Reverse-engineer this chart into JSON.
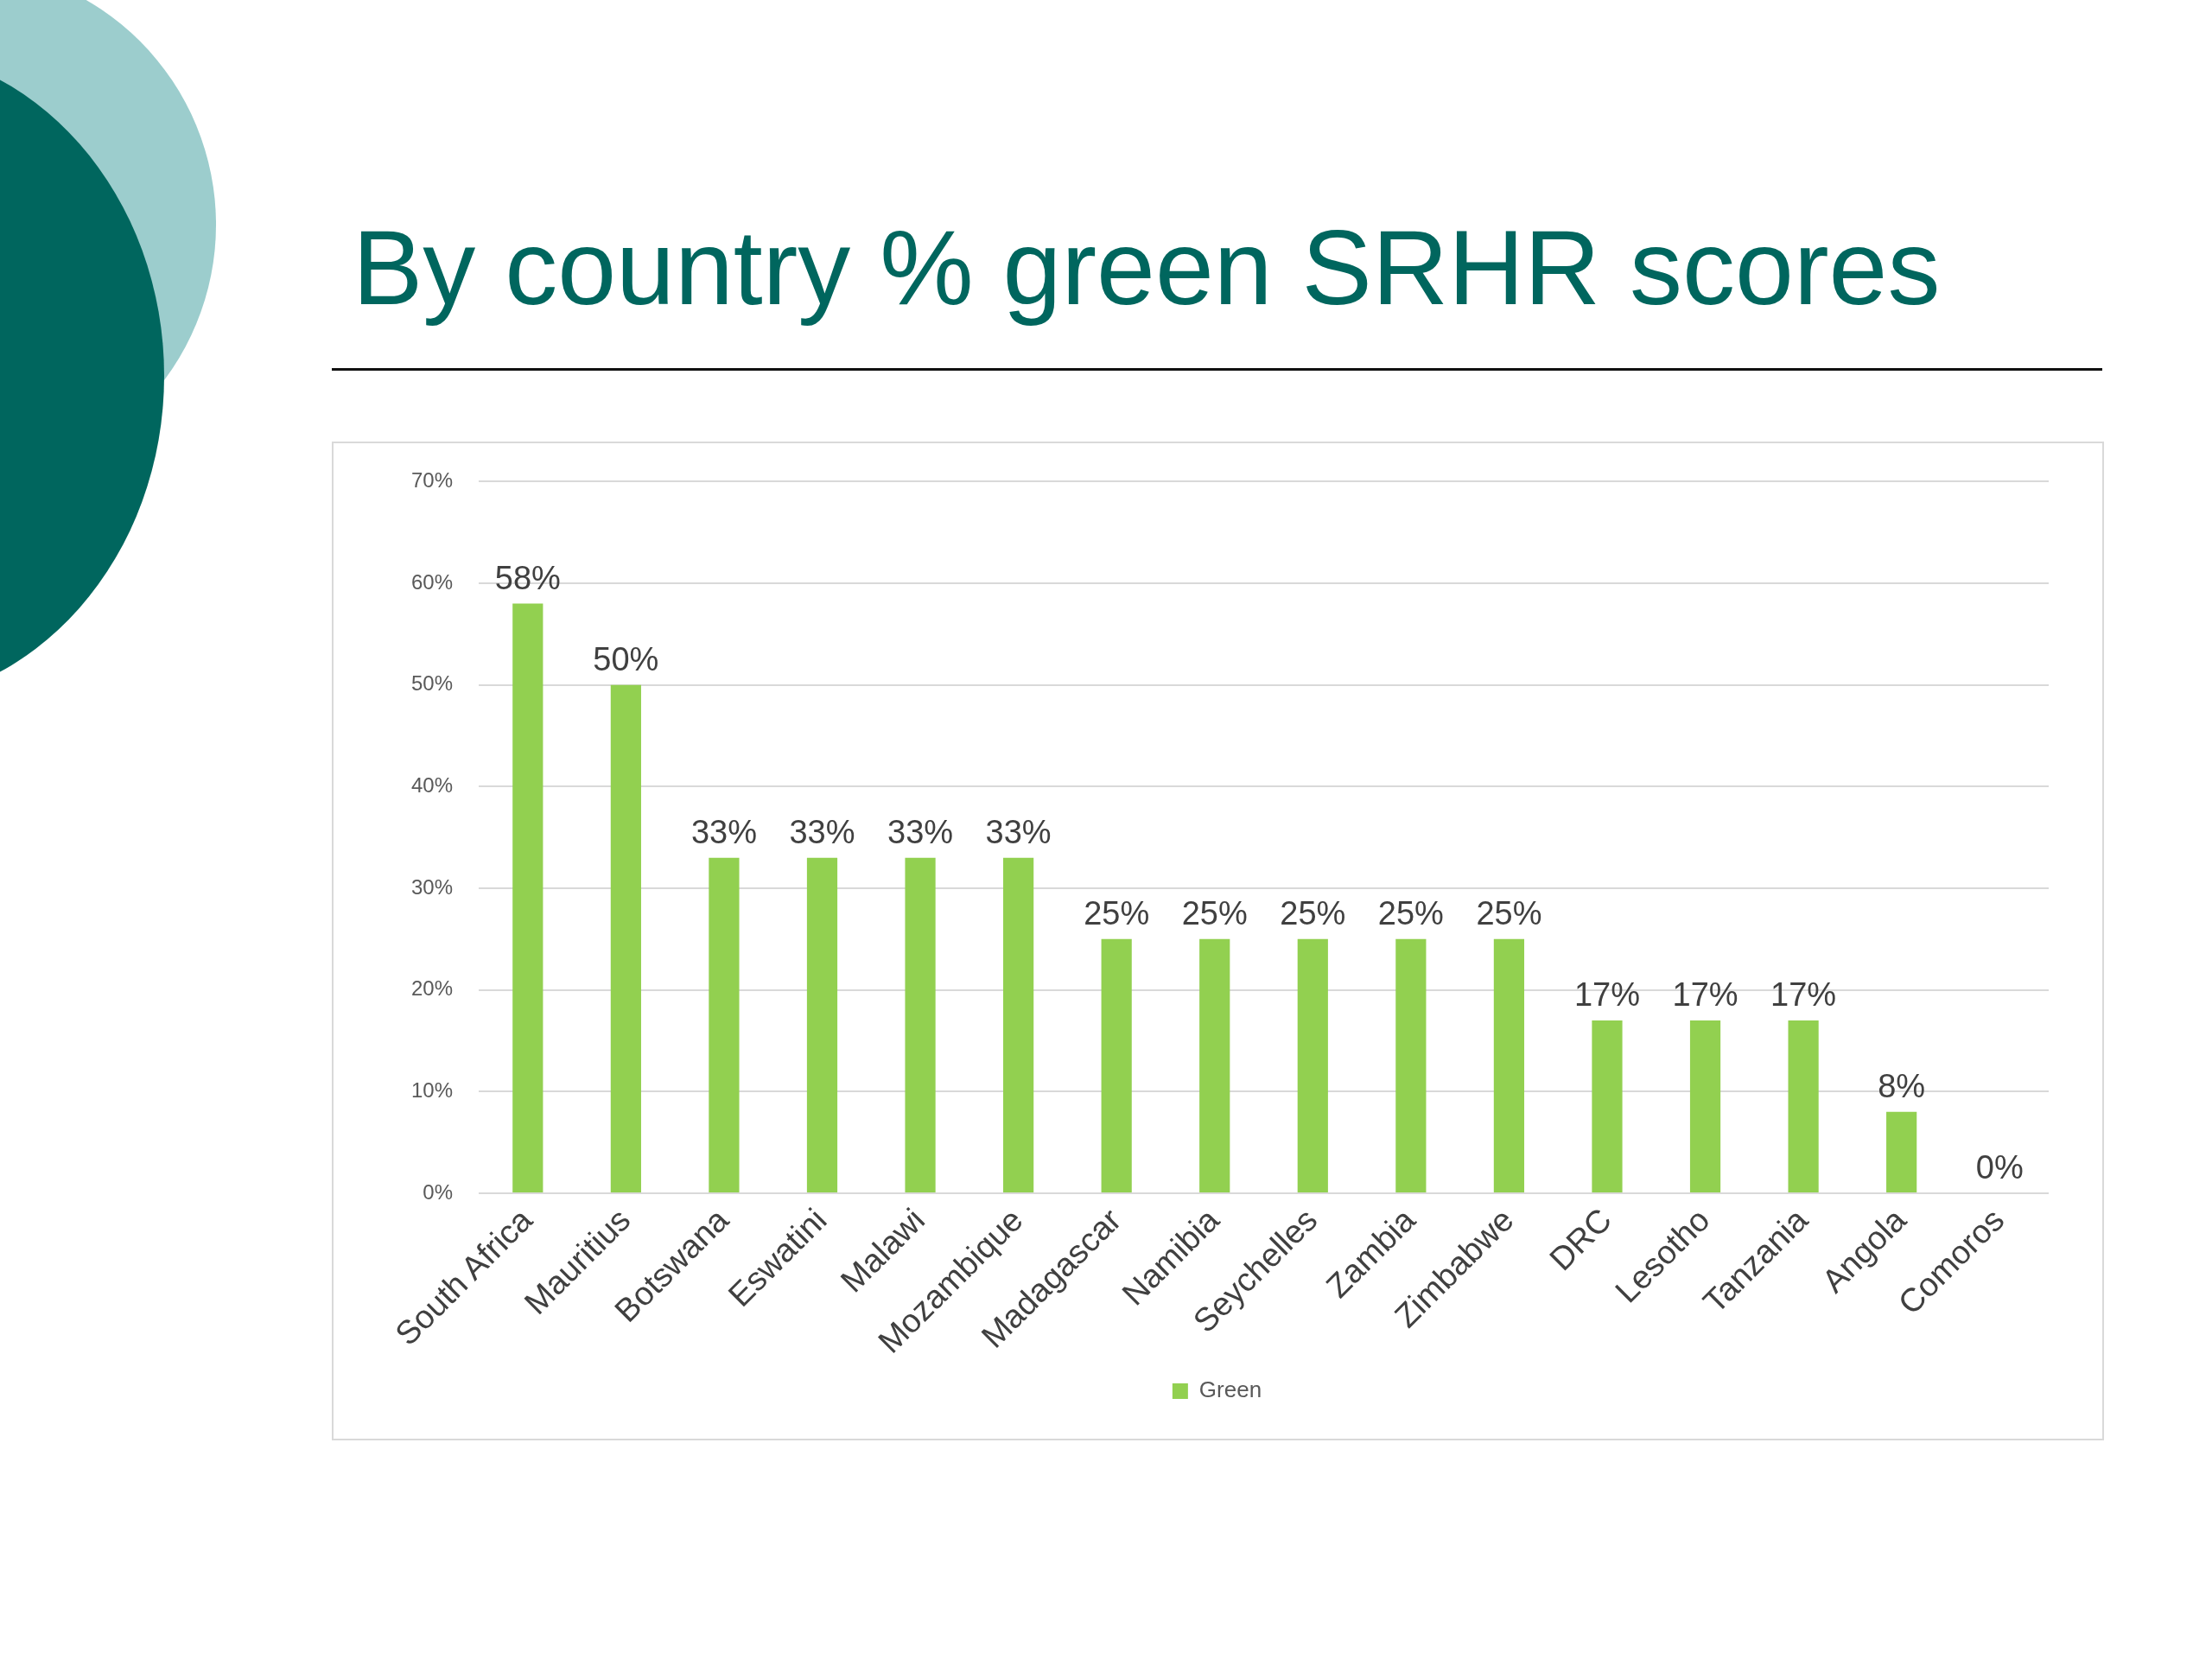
{
  "chart_data": {
    "type": "bar",
    "title": "By country % green SRHR scores",
    "categories": [
      "South Africa",
      "Mauritius",
      "Botswana",
      "Eswatini",
      "Malawi",
      "Mozambique",
      "Madagascar",
      "Namibia",
      "Seychelles",
      "Zambia",
      "Zimbabwe",
      "DRC",
      "Lesotho",
      "Tanzania",
      "Angola",
      "Comoros"
    ],
    "series": [
      {
        "name": "Green",
        "color": "#92d050",
        "values": [
          58,
          50,
          33,
          33,
          33,
          33,
          25,
          25,
          25,
          25,
          25,
          17,
          17,
          17,
          8,
          0
        ],
        "value_labels": [
          "58%",
          "50%",
          "33%",
          "33%",
          "33%",
          "33%",
          "25%",
          "25%",
          "25%",
          "25%",
          "25%",
          "17%",
          "17%",
          "17%",
          "8%",
          "0%"
        ]
      }
    ],
    "ylim": [
      0,
      70
    ],
    "yticks": [
      {
        "value": 0,
        "label": "0%"
      },
      {
        "value": 10,
        "label": "10%"
      },
      {
        "value": 20,
        "label": "20%"
      },
      {
        "value": 30,
        "label": "30%"
      },
      {
        "value": 40,
        "label": "40%"
      },
      {
        "value": 50,
        "label": "50%"
      },
      {
        "value": 60,
        "label": "60%"
      },
      {
        "value": 70,
        "label": "70%"
      }
    ],
    "grid": "y",
    "legend": "bottom"
  }
}
